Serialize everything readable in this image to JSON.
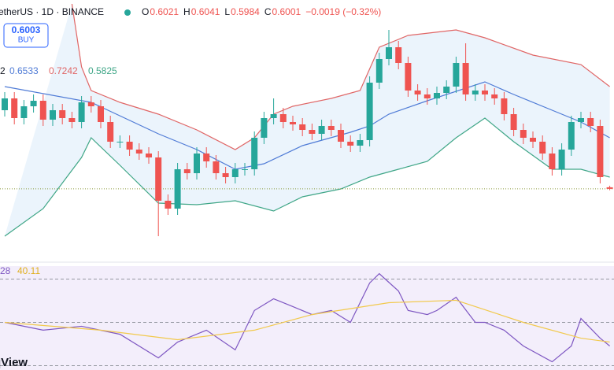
{
  "header": {
    "symbol": "etherUS · 1D · BINANCE",
    "ohlc_labels": [
      "O",
      "H",
      "L",
      "C"
    ],
    "change": "−0.0019 (−0.32%)",
    "buy_price": 0.6003,
    "buy_label": "BUY",
    "bb_legend": {
      "label": "2",
      "values": [
        0.6533,
        0.7242,
        0.5825
      ]
    },
    "rsi_legend": {
      "label": "28",
      "values": [
        40.11
      ]
    },
    "logo": "qView"
  },
  "chart_data": [
    {
      "type": "candlestick",
      "ylim": [
        0.54,
        0.84
      ],
      "up_color": "#26a69a",
      "down_color": "#ef5350",
      "price_line": true,
      "open": [
        0.7,
        0.715,
        0.69,
        0.705,
        0.712,
        0.688,
        0.7,
        0.69,
        0.685,
        0.71,
        0.705,
        0.685,
        0.66,
        0.66,
        0.65,
        0.645,
        0.64,
        0.585,
        0.575,
        0.625,
        0.62,
        0.645,
        0.635,
        0.62,
        0.615,
        0.625,
        0.625,
        0.665,
        0.69,
        0.695,
        0.685,
        0.682,
        0.675,
        0.67,
        0.68,
        0.675,
        0.66,
        0.655,
        0.662,
        0.735,
        0.765,
        0.78,
        0.76,
        0.725,
        0.72,
        0.715,
        0.722,
        0.73,
        0.76,
        0.72,
        0.725,
        0.72,
        0.715,
        0.695,
        0.675,
        0.665,
        0.66,
        0.645,
        0.625,
        0.65,
        0.685,
        0.69,
        0.68,
        0.6021
      ],
      "high": [
        0.723,
        0.723,
        0.713,
        0.72,
        0.72,
        0.708,
        0.708,
        0.698,
        0.718,
        0.718,
        0.713,
        0.693,
        0.668,
        0.668,
        0.658,
        0.653,
        0.648,
        0.593,
        0.633,
        0.633,
        0.653,
        0.653,
        0.643,
        0.628,
        0.633,
        0.633,
        0.673,
        0.698,
        0.715,
        0.703,
        0.693,
        0.69,
        0.683,
        0.688,
        0.688,
        0.683,
        0.668,
        0.67,
        0.743,
        0.773,
        0.802,
        0.788,
        0.768,
        0.733,
        0.728,
        0.73,
        0.738,
        0.768,
        0.785,
        0.733,
        0.733,
        0.728,
        0.723,
        0.703,
        0.683,
        0.673,
        0.668,
        0.653,
        0.658,
        0.693,
        0.698,
        0.698,
        0.688,
        0.6041
      ],
      "low": [
        0.692,
        0.682,
        0.682,
        0.697,
        0.68,
        0.68,
        0.682,
        0.677,
        0.677,
        0.697,
        0.677,
        0.652,
        0.652,
        0.642,
        0.637,
        0.632,
        0.54,
        0.567,
        0.567,
        0.612,
        0.612,
        0.627,
        0.612,
        0.607,
        0.607,
        0.617,
        0.617,
        0.657,
        0.682,
        0.677,
        0.674,
        0.667,
        0.662,
        0.662,
        0.667,
        0.652,
        0.647,
        0.647,
        0.654,
        0.727,
        0.757,
        0.752,
        0.717,
        0.712,
        0.707,
        0.707,
        0.714,
        0.722,
        0.712,
        0.712,
        0.712,
        0.707,
        0.687,
        0.667,
        0.657,
        0.652,
        0.637,
        0.617,
        0.617,
        0.642,
        0.677,
        0.672,
        0.607,
        0.5984
      ],
      "close": [
        0.715,
        0.69,
        0.705,
        0.712,
        0.688,
        0.7,
        0.69,
        0.685,
        0.71,
        0.705,
        0.685,
        0.66,
        0.66,
        0.65,
        0.645,
        0.64,
        0.585,
        0.575,
        0.625,
        0.62,
        0.645,
        0.635,
        0.62,
        0.615,
        0.625,
        0.625,
        0.665,
        0.69,
        0.695,
        0.685,
        0.682,
        0.675,
        0.67,
        0.68,
        0.675,
        0.66,
        0.655,
        0.662,
        0.735,
        0.765,
        0.78,
        0.76,
        0.725,
        0.72,
        0.715,
        0.722,
        0.73,
        0.76,
        0.72,
        0.725,
        0.72,
        0.715,
        0.695,
        0.675,
        0.665,
        0.66,
        0.645,
        0.625,
        0.65,
        0.685,
        0.69,
        0.68,
        0.615,
        0.6001
      ],
      "bands": [
        {
          "color": "#e06666",
          "x": [
            7,
            8,
            9,
            12,
            16,
            20,
            24,
            26,
            28,
            30,
            34,
            37,
            39,
            42,
            47,
            50,
            55,
            60,
            63
          ],
          "values": [
            0.835,
            0.755,
            0.725,
            0.71,
            0.695,
            0.675,
            0.65,
            0.665,
            0.695,
            0.705,
            0.715,
            0.725,
            0.78,
            0.795,
            0.802,
            0.792,
            0.77,
            0.758,
            0.73
          ]
        },
        {
          "color": "#4f7bd6",
          "x": [
            0,
            9,
            16,
            20,
            24,
            27,
            31,
            36,
            38,
            40,
            44,
            50,
            53,
            57,
            60,
            63
          ],
          "values": [
            0.73,
            0.71,
            0.67,
            0.65,
            0.625,
            0.632,
            0.655,
            0.672,
            0.68,
            0.695,
            0.712,
            0.736,
            0.72,
            0.7,
            0.685,
            0.665
          ]
        },
        {
          "color": "#3fa687",
          "x": [
            0,
            4,
            8,
            9,
            12,
            16,
            20,
            24,
            28,
            31,
            35,
            38,
            41,
            44,
            47,
            50,
            53,
            57,
            60,
            63
          ],
          "values": [
            0.54,
            0.575,
            0.64,
            0.665,
            0.63,
            0.582,
            0.58,
            0.585,
            0.572,
            0.59,
            0.6,
            0.615,
            0.625,
            0.635,
            0.665,
            0.69,
            0.66,
            0.625,
            0.625,
            0.615
          ]
        }
      ]
    },
    {
      "type": "line",
      "ylim": [
        28,
        76
      ],
      "levels": [
        70,
        50,
        30
      ],
      "series": [
        {
          "color": "#7e57c2",
          "x": [
            0,
            4,
            8,
            12,
            16,
            18,
            21,
            24,
            26,
            28,
            30,
            32,
            34,
            36,
            38,
            39,
            41,
            42,
            44,
            45,
            47,
            49,
            50,
            52,
            54,
            57,
            59,
            60,
            62,
            63
          ],
          "values": [
            50,
            46.4,
            48.2,
            44.5,
            33.6,
            40.9,
            46.4,
            37.3,
            55.5,
            60.9,
            57.3,
            53.6,
            55.5,
            50,
            68.2,
            72.5,
            64.5,
            55.5,
            53.6,
            55.5,
            61.6,
            50,
            50,
            46.4,
            39.1,
            31.8,
            39.1,
            51.8,
            42.7,
            39.1
          ]
        },
        {
          "color": "#f2c94c",
          "x": [
            0,
            10,
            18,
            26,
            32,
            40,
            47,
            54,
            60,
            63
          ],
          "values": [
            50,
            46.4,
            42,
            46.4,
            53.6,
            59.1,
            60.2,
            50,
            42.7,
            40.9
          ]
        }
      ]
    }
  ]
}
